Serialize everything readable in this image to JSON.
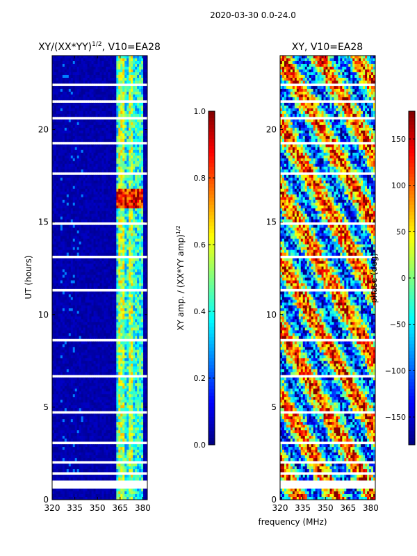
{
  "suptitle": "2020-03-30 0.0-24.0",
  "chart_data": [
    {
      "type": "heatmap",
      "panel": "left",
      "title_main": "XY/(XX*YY)",
      "title_sup": "1/2",
      "title_suffix": ", V10=EA28",
      "xlabel": "",
      "ylabel": "UT (hours)",
      "xlim": [
        320,
        383
      ],
      "ylim": [
        0,
        24
      ],
      "xticks": [
        320,
        335,
        350,
        365,
        380
      ],
      "yticks": [
        0,
        5,
        10,
        15,
        20
      ],
      "colorbar": {
        "label_main": "XY amp. / (XX*YY amp)",
        "label_sup": "1/2",
        "range": [
          0.0,
          1.0
        ],
        "ticks": [
          "0.0",
          "0.2",
          "0.4",
          "0.6",
          "0.8",
          "1.0"
        ],
        "tick_values": [
          0.0,
          0.2,
          0.4,
          0.6,
          0.8,
          1.0
        ],
        "colormap": "jet"
      }
    },
    {
      "type": "heatmap",
      "panel": "right",
      "title": "XY, V10=EA28",
      "xlabel": "frequency (MHz)",
      "ylabel": "",
      "xlim": [
        320,
        383
      ],
      "ylim": [
        0,
        24
      ],
      "xticks": [
        320,
        335,
        350,
        365,
        380
      ],
      "yticks": [
        0,
        5,
        10,
        15,
        20
      ],
      "colorbar": {
        "label": "phase (deg)",
        "range": [
          -180,
          180
        ],
        "ticks": [
          "−150",
          "−100",
          "−50",
          "0",
          "50",
          "100",
          "150"
        ],
        "tick_values": [
          -150,
          -100,
          -50,
          0,
          50,
          100,
          150
        ],
        "colormap": "jet"
      }
    }
  ],
  "colors": {
    "jet_low": "#00007f",
    "jet_high": "#7f0000",
    "gap": "#ffffff"
  }
}
